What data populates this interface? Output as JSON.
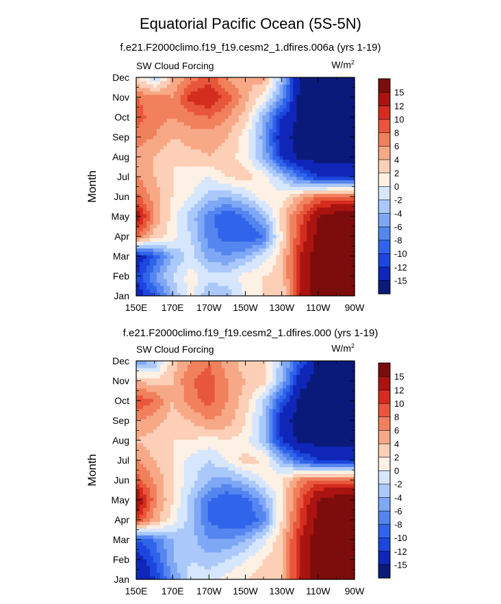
{
  "figure": {
    "title": "Equatorial Pacific Ocean (5S-5N)"
  },
  "colors": [
    "#0a1a7a",
    "#1026b8",
    "#1c46dc",
    "#3064ea",
    "#5585ef",
    "#7ea7f5",
    "#aac8fa",
    "#d6e6fd",
    "#fdf0e4",
    "#fccfb6",
    "#f7a987",
    "#f1805c",
    "#e8573b",
    "#d32d1e",
    "#a91410",
    "#7d0c0c"
  ],
  "chart_data": [
    {
      "type": "heatmap",
      "title": "f.e21.F2000climo.f19_f19.cesm2_1.dfires.006a (yrs 1-19)",
      "field_label": "SW Cloud Forcing",
      "units_base": "W/m",
      "units_exp": "2",
      "ylabel": "Month",
      "y_categories": [
        "Jan",
        "Feb",
        "Mar",
        "Apr",
        "May",
        "Jun",
        "Jul",
        "Aug",
        "Sep",
        "Oct",
        "Nov",
        "Dec"
      ],
      "x_tick_labels": [
        "150E",
        "170E",
        "170W",
        "150W",
        "130W",
        "110W",
        "90W"
      ],
      "x_ticks": [
        150,
        170,
        190,
        210,
        230,
        250,
        270
      ],
      "x": [
        150,
        160,
        170,
        180,
        190,
        200,
        210,
        220,
        230,
        240,
        250,
        260,
        270
      ],
      "xlim": [
        150,
        270
      ],
      "colorbar_levels": [
        "-15",
        "-12",
        "-10",
        "-8",
        "-6",
        "-4",
        "-2",
        "0",
        "2",
        "4",
        "6",
        "8",
        "10",
        "12",
        "15"
      ],
      "values": [
        [
          -14,
          -10,
          -4,
          1,
          -4,
          -3,
          0,
          2,
          2,
          12,
          17,
          18,
          18
        ],
        [
          -12,
          -6,
          -2,
          1,
          -1,
          -1,
          1,
          2,
          3,
          12,
          17,
          18,
          18
        ],
        [
          -14,
          -10,
          -4,
          -1,
          -5,
          -6,
          -4,
          -1,
          3,
          12,
          17,
          18,
          18
        ],
        [
          8,
          3,
          1,
          -2,
          -7,
          -9,
          -10,
          -8,
          2,
          10,
          16,
          18,
          18
        ],
        [
          14,
          6,
          1,
          -3,
          -7,
          -10,
          -8,
          -4,
          3,
          9,
          15,
          17,
          18
        ],
        [
          9,
          5,
          2,
          0,
          -3,
          -4,
          -2,
          1,
          1,
          5,
          8,
          9,
          9
        ],
        [
          6,
          4,
          2,
          1,
          0,
          2,
          3,
          1,
          -3,
          -8,
          -12,
          -12,
          -12
        ],
        [
          5,
          4,
          2,
          3,
          4,
          3,
          1,
          -4,
          -12,
          -16,
          -16,
          -16,
          -16
        ],
        [
          7,
          6,
          4,
          5,
          5,
          4,
          1,
          -5,
          -14,
          -16,
          -16,
          -16,
          -16
        ],
        [
          9,
          7,
          6,
          7,
          8,
          6,
          3,
          -4,
          -12,
          -16,
          -16,
          -16,
          -16
        ],
        [
          8,
          7,
          6,
          11,
          12,
          9,
          5,
          1,
          -6,
          -16,
          -16,
          -16,
          -16
        ],
        [
          2,
          -2,
          4,
          7,
          9,
          6,
          4,
          5,
          -3,
          -16,
          -16,
          -16,
          -16
        ]
      ]
    },
    {
      "type": "heatmap",
      "title": "f.e21.F2000climo.f19_f19.cesm2_1.dfires.000 (yrs 1-19)",
      "field_label": "SW Cloud Forcing",
      "units_base": "W/m",
      "units_exp": "2",
      "ylabel": "Month",
      "y_categories": [
        "Jan",
        "Feb",
        "Mar",
        "Apr",
        "May",
        "Jun",
        "Jul",
        "Aug",
        "Sep",
        "Oct",
        "Nov",
        "Dec"
      ],
      "x_tick_labels": [
        "150E",
        "170E",
        "170W",
        "150W",
        "130W",
        "110W",
        "90W"
      ],
      "x_ticks": [
        150,
        170,
        190,
        210,
        230,
        250,
        270
      ],
      "x": [
        150,
        160,
        170,
        180,
        190,
        200,
        210,
        220,
        230,
        240,
        250,
        260,
        270
      ],
      "xlim": [
        150,
        270
      ],
      "colorbar_levels": [
        "-15",
        "-12",
        "-10",
        "-8",
        "-6",
        "-4",
        "-2",
        "0",
        "2",
        "4",
        "6",
        "8",
        "10",
        "12",
        "15"
      ],
      "values": [
        [
          -15,
          -12,
          -6,
          -1,
          -1,
          1,
          2,
          3,
          4,
          12,
          17,
          18,
          18
        ],
        [
          -14,
          -10,
          -4,
          -2,
          -3,
          -2,
          0,
          2,
          4,
          12,
          17,
          18,
          18
        ],
        [
          -10,
          -8,
          -4,
          -3,
          -6,
          -6,
          -4,
          -1,
          4,
          12,
          17,
          18,
          18
        ],
        [
          10,
          5,
          1,
          -3,
          -8,
          -10,
          -10,
          -7,
          2,
          10,
          16,
          18,
          18
        ],
        [
          15,
          7,
          2,
          -3,
          -8,
          -10,
          -9,
          -5,
          2,
          9,
          15,
          17,
          18
        ],
        [
          9,
          6,
          2,
          -1,
          -4,
          -5,
          -3,
          0,
          2,
          7,
          9,
          9,
          9
        ],
        [
          6,
          4,
          2,
          -1,
          -2,
          0,
          3,
          2,
          -4,
          -9,
          -12,
          -12,
          -12
        ],
        [
          4,
          3,
          2,
          2,
          1,
          2,
          1,
          -3,
          -12,
          -16,
          -16,
          -16,
          -16
        ],
        [
          6,
          5,
          3,
          4,
          6,
          5,
          2,
          -3,
          -14,
          -16,
          -16,
          -16,
          -16
        ],
        [
          10,
          8,
          4,
          7,
          9,
          6,
          3,
          -2,
          -10,
          -16,
          -16,
          -16,
          -16
        ],
        [
          4,
          3,
          4,
          8,
          9,
          6,
          4,
          3,
          -4,
          -14,
          -16,
          -16,
          -16
        ],
        [
          -6,
          -4,
          3,
          6,
          8,
          5,
          3,
          3,
          -3,
          -10,
          -16,
          -16,
          -16
        ]
      ]
    }
  ]
}
